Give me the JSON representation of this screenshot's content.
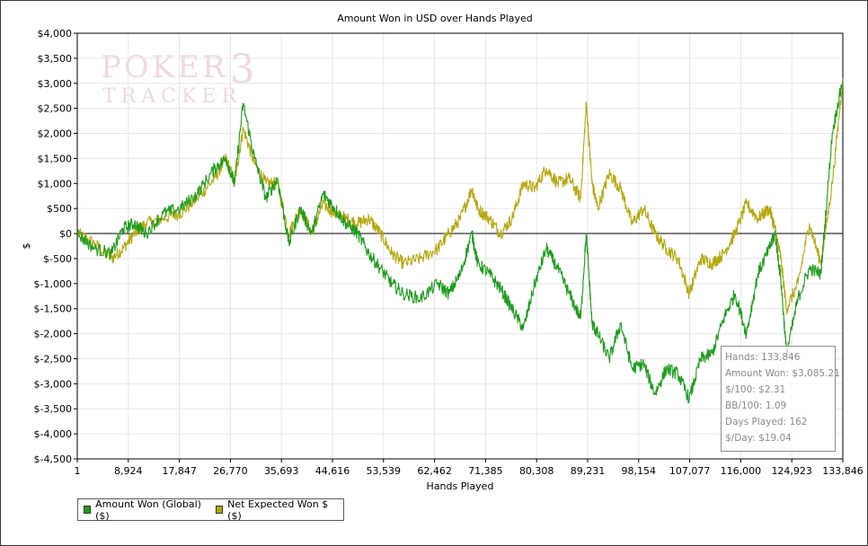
{
  "chart_data": {
    "type": "line",
    "title": "Amount Won in USD over Hands Played",
    "xlabel": "Hands Played",
    "ylabel": "$",
    "xlim": [
      1,
      133846
    ],
    "ylim": [
      -4500,
      4000
    ],
    "x_ticks": [
      1,
      8924,
      17847,
      26770,
      35693,
      44616,
      53539,
      62462,
      71385,
      80308,
      89231,
      98154,
      107077,
      116000,
      124923,
      133846
    ],
    "x_tick_labels": [
      "1",
      "8,924",
      "17,847",
      "26,770",
      "35,693",
      "44,616",
      "53,539",
      "62,462",
      "71,385",
      "80,308",
      "89,231",
      "98,154",
      "107,077",
      "116,000",
      "124,923",
      "133,846"
    ],
    "y_ticks": [
      4000,
      3500,
      3000,
      2500,
      2000,
      1500,
      1000,
      500,
      0,
      -500,
      -1000,
      -1500,
      -2000,
      -2500,
      -3000,
      -3500,
      -4000,
      -4500
    ],
    "y_tick_labels": [
      "$4,000",
      "$3,500",
      "$3,000",
      "$2,500",
      "$2,000",
      "$1,500",
      "$1,000",
      "$500",
      "$0",
      "$-500",
      "$-1,000",
      "$-1,500",
      "$-2,000",
      "$-2,500",
      "$-3,000",
      "$-3,500",
      "$-4,000",
      "$-4,500"
    ],
    "grid": true,
    "legend_position": "bottom-left",
    "series": [
      {
        "name": "Amount Won (Global) ($)",
        "color": "#1c9c1c",
        "x": [
          1,
          3000,
          6000,
          8000,
          10000,
          12000,
          15000,
          18000,
          21000,
          24000,
          26000,
          27500,
          29000,
          31000,
          33000,
          35000,
          37000,
          39000,
          41000,
          43000,
          45000,
          47000,
          49000,
          51000,
          53000,
          55000,
          57000,
          60000,
          63000,
          65000,
          67000,
          69000,
          70000,
          72000,
          74000,
          76000,
          78000,
          80000,
          82000,
          84000,
          86000,
          88000,
          89000,
          90000,
          91000,
          93000,
          95000,
          97000,
          99000,
          101000,
          103000,
          105000,
          107000,
          109000,
          111000,
          113000,
          115000,
          117000,
          119000,
          121000,
          122000,
          123000,
          124000,
          126000,
          128000,
          130000,
          132000,
          133846
        ],
        "y": [
          0,
          -300,
          -400,
          100,
          200,
          0,
          400,
          500,
          800,
          1300,
          1500,
          1000,
          2600,
          1500,
          700,
          1100,
          -200,
          500,
          0,
          800,
          500,
          200,
          0,
          -400,
          -700,
          -1000,
          -1200,
          -1300,
          -1000,
          -1200,
          -800,
          0,
          -600,
          -800,
          -1100,
          -1500,
          -1900,
          -1000,
          -300,
          -700,
          -1200,
          -1700,
          0,
          -1800,
          -2000,
          -2500,
          -1800,
          -2700,
          -2600,
          -3200,
          -2700,
          -2800,
          -3300,
          -2500,
          -2400,
          -1700,
          -1200,
          -2000,
          -800,
          -300,
          0,
          -900,
          -2400,
          -1300,
          -700,
          -800,
          2000,
          3085
        ]
      },
      {
        "name": "Net Expected Won $ ($)",
        "color": "#b5a80e",
        "x": [
          1,
          3000,
          6000,
          8000,
          10000,
          12000,
          15000,
          18000,
          21000,
          24000,
          26000,
          27500,
          29000,
          31000,
          33000,
          35000,
          37000,
          39000,
          41000,
          43000,
          45000,
          47000,
          49000,
          51000,
          53000,
          55000,
          57000,
          60000,
          63000,
          65000,
          67000,
          69000,
          70000,
          72000,
          74000,
          76000,
          78000,
          80000,
          82000,
          84000,
          86000,
          88000,
          89000,
          90000,
          91000,
          93000,
          95000,
          97000,
          99000,
          101000,
          103000,
          105000,
          107000,
          109000,
          111000,
          113000,
          115000,
          117000,
          119000,
          121000,
          122000,
          123000,
          124000,
          126000,
          128000,
          130000,
          132000,
          133846
        ],
        "y": [
          0,
          -200,
          -500,
          -300,
          0,
          200,
          300,
          400,
          700,
          1100,
          1500,
          1000,
          2100,
          1400,
          1000,
          1000,
          0,
          500,
          0,
          600,
          400,
          300,
          200,
          300,
          0,
          -400,
          -600,
          -500,
          -300,
          0,
          300,
          900,
          500,
          300,
          0,
          300,
          1000,
          900,
          1300,
          1000,
          1100,
          700,
          2600,
          1000,
          500,
          1200,
          900,
          200,
          500,
          0,
          -300,
          -500,
          -1200,
          -500,
          -600,
          -400,
          0,
          600,
          300,
          500,
          100,
          -500,
          -1500,
          -1000,
          200,
          -600,
          1000,
          3100
        ]
      }
    ]
  },
  "stats": {
    "hands": "Hands: 133,846",
    "amount_won": "Amount Won: $3,085.21",
    "per_100": "$/100: $2.31",
    "bb_100": "BB/100: 1.09",
    "days_played": "Days Played: 162",
    "per_day": "$/Day: $19.04"
  },
  "watermark": {
    "line1": "POKER",
    "line2": "TRACKER",
    "numeral": "3"
  }
}
